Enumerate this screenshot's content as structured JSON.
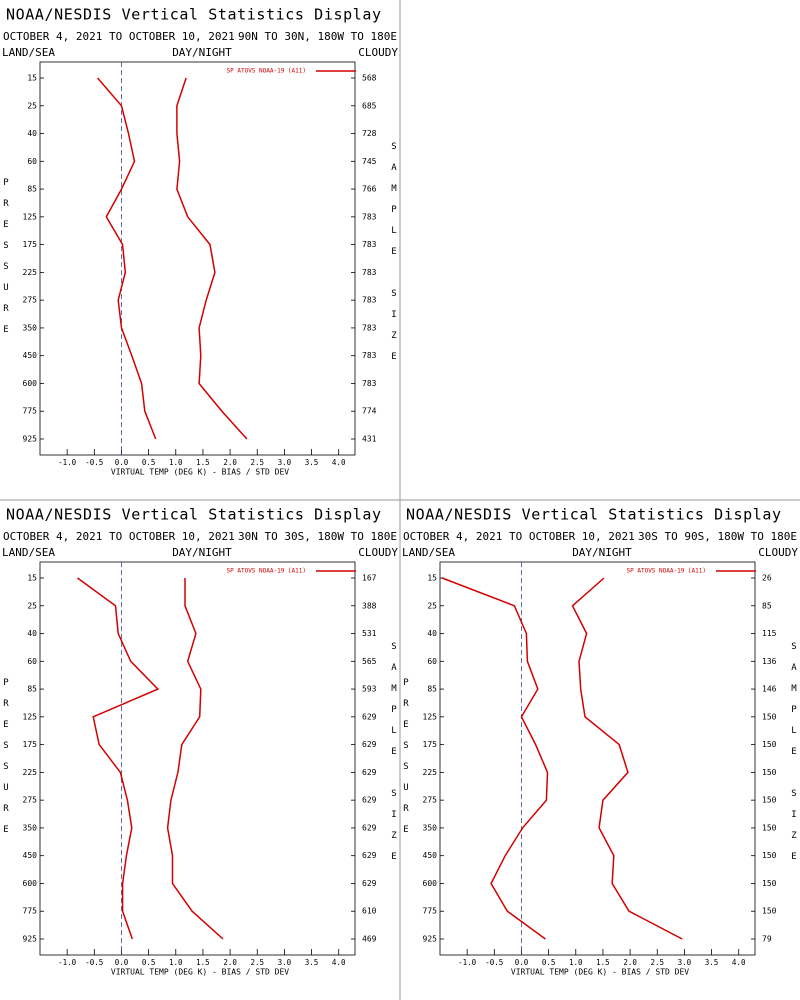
{
  "chart_data": [
    {
      "type": "profile",
      "title": "NOAA/NESDIS Vertical Statistics Display",
      "subtitle": "OCTOBER 4, 2021 TO OCTOBER 10, 2021",
      "region": "90N TO 30N, 180W TO 180E",
      "top_labels": [
        "LAND/SEA",
        "DAY/NIGHT",
        "CLOUDY"
      ],
      "y_label": "PRESSURE",
      "y2_label": "SAMPLE SIZE",
      "x_label": "VIRTUAL TEMP (DEG K) - BIAS / STD DEV",
      "categories": [
        "15",
        "25",
        "40",
        "60",
        "85",
        "125",
        "175",
        "225",
        "275",
        "350",
        "450",
        "600",
        "775",
        "925"
      ],
      "sample_sizes": [
        "568",
        "685",
        "728",
        "745",
        "766",
        "783",
        "783",
        "783",
        "783",
        "783",
        "783",
        "783",
        "774",
        "431"
      ],
      "series": [
        {
          "name": "SP ATOVS NOAA-19 (A11)",
          "color": "#d40000",
          "values": [
            -0.44,
            0.0,
            0.13,
            0.24,
            0.0,
            -0.28,
            0.02,
            0.07,
            -0.06,
            0.0,
            0.19,
            0.37,
            0.43,
            0.63
          ],
          "std_dev": [
            1.19,
            1.02,
            1.02,
            1.07,
            1.02,
            1.22,
            1.63,
            1.72,
            1.56,
            1.43,
            1.46,
            1.43,
            1.85,
            2.31
          ]
        }
      ],
      "xlim": [
        -1.5,
        4.3
      ],
      "xticks": [
        {
          "value": -1,
          "label": "-1.0"
        },
        -0.5,
        {
          "value": 0,
          "label": "0.0"
        },
        0.5,
        {
          "value": 1,
          "label": "1.0"
        },
        1.5,
        {
          "value": 2,
          "label": "2.0"
        },
        2.5,
        {
          "value": 3,
          "label": "3.0"
        },
        3.5,
        {
          "value": 4,
          "label": "4.0"
        }
      ]
    },
    {
      "type": "profile",
      "title": "NOAA/NESDIS Vertical Statistics Display",
      "subtitle": "OCTOBER 4, 2021 TO OCTOBER 10, 2021",
      "region": "30N TO 30S, 180W TO 180E",
      "top_labels": [
        "LAND/SEA",
        "DAY/NIGHT",
        "CLOUDY"
      ],
      "y_label": "PRESSURE",
      "y2_label": "SAMPLE SIZE",
      "x_label": "VIRTUAL TEMP (DEG K) - BIAS / STD DEV",
      "categories": [
        "15",
        "25",
        "40",
        "60",
        "85",
        "125",
        "175",
        "225",
        "275",
        "350",
        "450",
        "600",
        "775",
        "925"
      ],
      "sample_sizes": [
        "167",
        "388",
        "531",
        "565",
        "593",
        "629",
        "629",
        "629",
        "629",
        "629",
        "629",
        "629",
        "610",
        "469"
      ],
      "series": [
        {
          "name": "SP ATOVS NOAA-19 (A11)",
          "color": "#d40000",
          "values": [
            -0.81,
            -0.11,
            -0.06,
            0.17,
            0.67,
            -0.52,
            -0.41,
            -0.02,
            0.11,
            0.19,
            0.09,
            0.02,
            0.02,
            0.2
          ],
          "std_dev": [
            1.17,
            1.17,
            1.37,
            1.22,
            1.46,
            1.44,
            1.11,
            1.04,
            0.91,
            0.85,
            0.94,
            0.94,
            1.3,
            1.87
          ]
        }
      ],
      "xlim": [
        -1.5,
        4.3
      ],
      "xticks": [
        {
          "value": -1,
          "label": "-1.0"
        },
        -0.5,
        {
          "value": 0,
          "label": "0.0"
        },
        0.5,
        {
          "value": 1,
          "label": "1.0"
        },
        1.5,
        {
          "value": 2,
          "label": "2.0"
        },
        2.5,
        {
          "value": 3,
          "label": "3.0"
        },
        3.5,
        {
          "value": 4,
          "label": "4.0"
        }
      ]
    },
    {
      "type": "profile",
      "title": "NOAA/NESDIS Vertical Statistics Display",
      "subtitle": "OCTOBER 4, 2021 TO OCTOBER 10, 2021",
      "region": "30S TO 90S, 180W TO 180E",
      "top_labels": [
        "LAND/SEA",
        "DAY/NIGHT",
        "CLOUDY"
      ],
      "y_label": "PRESSURE",
      "y2_label": "SAMPLE SIZE",
      "x_label": "VIRTUAL TEMP (DEG K) - BIAS / STD DEV",
      "categories": [
        "15",
        "25",
        "40",
        "60",
        "85",
        "125",
        "175",
        "225",
        "275",
        "350",
        "450",
        "600",
        "775",
        "925"
      ],
      "sample_sizes": [
        "26",
        "85",
        "115",
        "136",
        "146",
        "150",
        "150",
        "150",
        "150",
        "150",
        "150",
        "150",
        "150",
        "79"
      ],
      "series": [
        {
          "name": "SP ATOVS NOAA-19 (A11)",
          "color": "#d40000",
          "values": [
            -1.46,
            -0.13,
            0.09,
            0.11,
            0.3,
            0.0,
            0.26,
            0.48,
            0.46,
            0.02,
            -0.3,
            -0.56,
            -0.26,
            0.44
          ],
          "std_dev": [
            1.52,
            0.94,
            1.2,
            1.06,
            1.09,
            1.17,
            1.8,
            1.96,
            1.5,
            1.43,
            1.7,
            1.67,
            1.98,
            2.96
          ]
        }
      ],
      "xlim": [
        -1.5,
        4.3
      ],
      "xticks": [
        {
          "value": -1,
          "label": "-1.0"
        },
        -0.5,
        {
          "value": 0,
          "label": "0.0"
        },
        0.5,
        {
          "value": 1,
          "label": "1.0"
        },
        1.5,
        {
          "value": 2,
          "label": "2.0"
        },
        2.5,
        {
          "value": 3,
          "label": "3.0"
        },
        3.5,
        {
          "value": 4,
          "label": "4.0"
        }
      ]
    }
  ]
}
